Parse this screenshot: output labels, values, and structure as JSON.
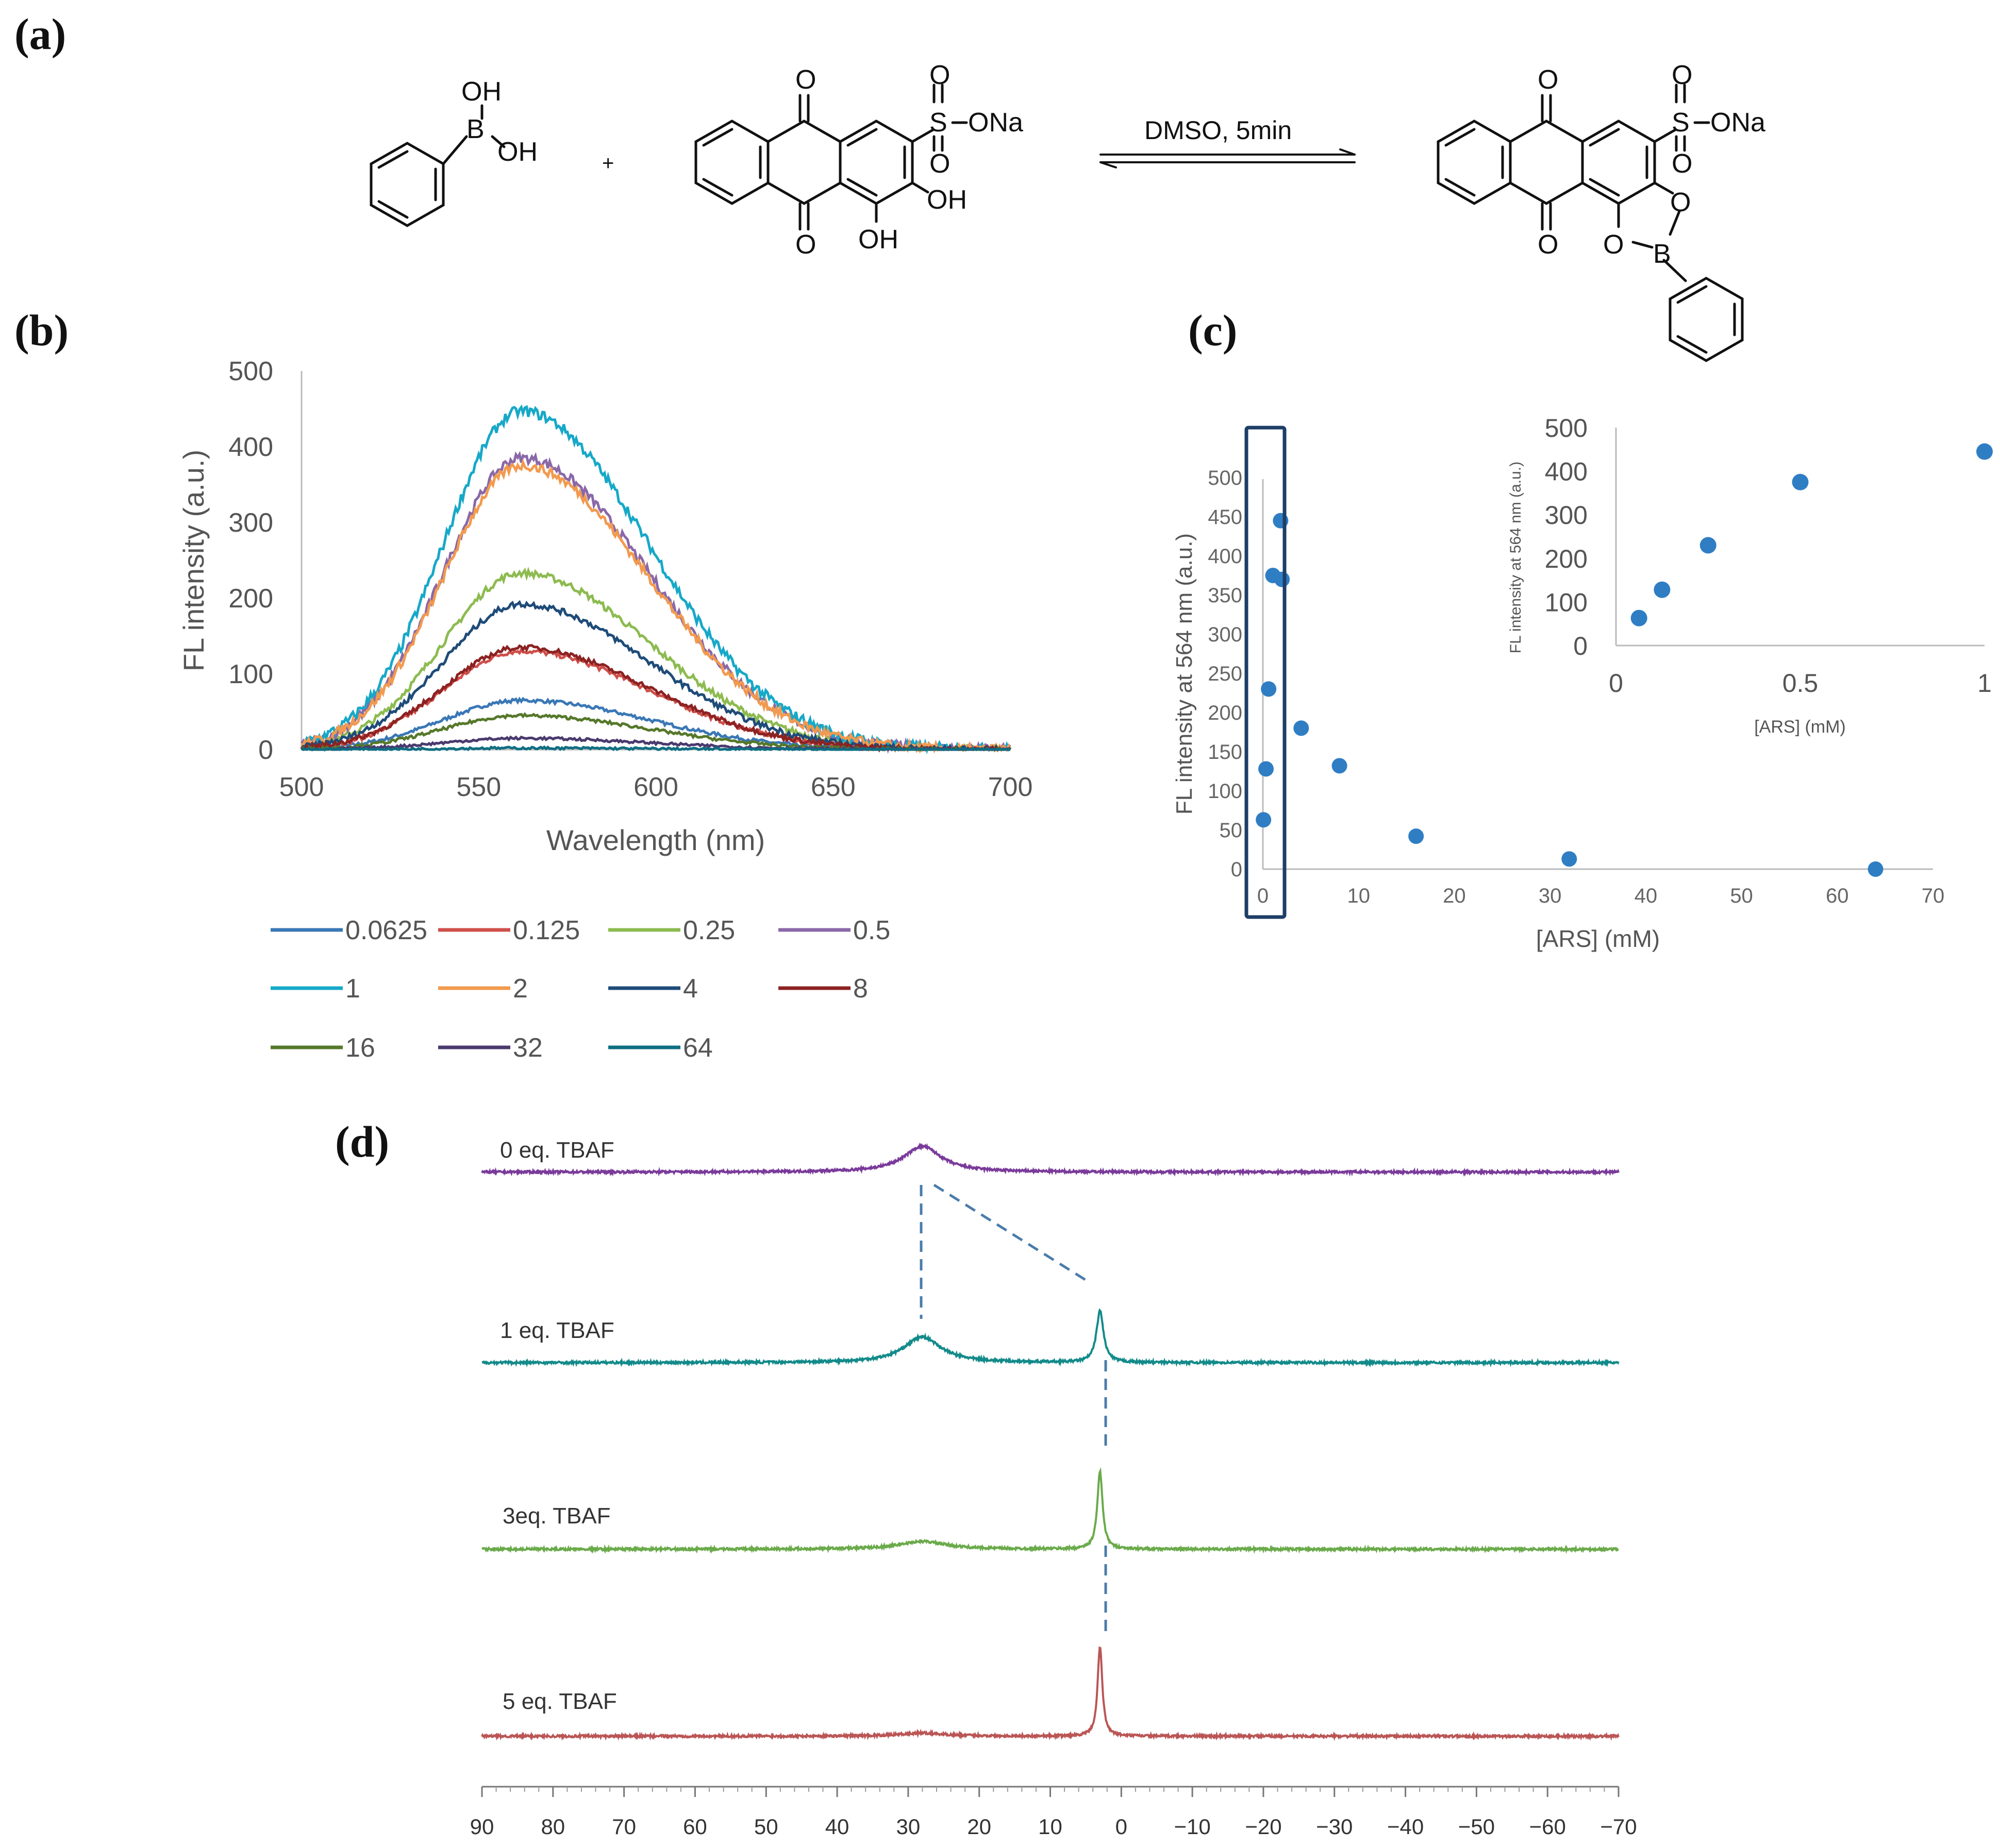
{
  "panels": {
    "a": "(a)",
    "b": "(b)",
    "c": "(c)",
    "d": "(d)"
  },
  "reaction": {
    "condition": "DMSO, 5min",
    "plus": "+",
    "reactant1": {
      "oh_top": "OH",
      "b": "B",
      "oh_right": "OH"
    },
    "reactant2": {
      "o_top": "O",
      "o_bottom": "O",
      "s": "S",
      "so_top": "O",
      "so_bottom": "O",
      "ona": "ONa",
      "oh1": "OH",
      "oh2": "OH"
    },
    "product": {
      "o_top": "O",
      "o_bottom": "O",
      "s": "S",
      "so_top": "O",
      "so_bottom": "O",
      "ona": "ONa",
      "ring_o1": "O",
      "ring_o2": "O",
      "b": "B"
    }
  },
  "chart_data": [
    {
      "id": "b",
      "type": "line",
      "xlabel": "Wavelength (nm)",
      "ylabel": "FL intensity (a.u.)",
      "xlim": [
        500,
        700
      ],
      "ylim": [
        0,
        500
      ],
      "xticks": [
        "500",
        "550",
        "600",
        "650",
        "700"
      ],
      "yticks": [
        "0",
        "100",
        "200",
        "300",
        "400",
        "500"
      ],
      "peak_nm": 562,
      "series": [
        {
          "name": "0.0625",
          "color": "#3a78b6",
          "peak": 65
        },
        {
          "name": "0.125",
          "color": "#cf4f4a",
          "peak": 130
        },
        {
          "name": "0.25",
          "color": "#8dbb50",
          "peak": 233
        },
        {
          "name": "0.5",
          "color": "#8a68a8",
          "peak": 385
        },
        {
          "name": "1",
          "color": "#17a8c8",
          "peak": 447
        },
        {
          "name": "2",
          "color": "#f29a4e",
          "peak": 375
        },
        {
          "name": "4",
          "color": "#1e4b78",
          "peak": 192
        },
        {
          "name": "8",
          "color": "#8c2222",
          "peak": 135
        },
        {
          "name": "16",
          "color": "#55782a",
          "peak": 45
        },
        {
          "name": "32",
          "color": "#4a3a6e",
          "peak": 15
        },
        {
          "name": "64",
          "color": "#0f6e82",
          "peak": 2
        }
      ]
    },
    {
      "id": "c",
      "type": "scatter",
      "xlabel": "[ARS] (mM)",
      "ylabel": "FL intensity at 564 nm (a.u.)",
      "xlim": [
        0,
        70
      ],
      "ylim": [
        0,
        500
      ],
      "xticks": [
        "0",
        "10",
        "20",
        "30",
        "40",
        "50",
        "60",
        "70"
      ],
      "yticks": [
        "0",
        "50",
        "100",
        "150",
        "200",
        "250",
        "300",
        "350",
        "400",
        "450",
        "500"
      ],
      "color": "#2f7ec4",
      "x": [
        0.0625,
        0.125,
        0.25,
        0.5,
        1,
        2,
        4,
        8,
        16,
        32,
        64
      ],
      "y": [
        63,
        128,
        230,
        375,
        445,
        370,
        180,
        132,
        42,
        13,
        0
      ],
      "inset": {
        "xlabel": "[ARS] (mM)",
        "ylabel": "FL intensity at 564 nm (a.u.)",
        "xlim": [
          0,
          1
        ],
        "ylim": [
          0,
          500
        ],
        "xticks": [
          "0",
          "0.5",
          "1"
        ],
        "yticks": [
          "0",
          "100",
          "200",
          "300",
          "400",
          "500"
        ],
        "x": [
          0.0625,
          0.125,
          0.25,
          0.5,
          1
        ],
        "y": [
          63,
          128,
          230,
          375,
          445
        ]
      }
    },
    {
      "id": "d",
      "type": "line",
      "xlabel": "",
      "xlim": [
        90,
        -70
      ],
      "xticks": [
        "90",
        "80",
        "70",
        "60",
        "50",
        "40",
        "30",
        "20",
        "10",
        "0",
        "−10",
        "−20",
        "−30",
        "−40",
        "−50",
        "−60",
        "−70"
      ],
      "series": [
        {
          "name": "0 eq. TBAF",
          "color": "#7a3a9a",
          "peaks": [
            {
              "ppm": 28,
              "height": 1.0,
              "width": 3.2
            }
          ]
        },
        {
          "name": "1 eq. TBAF",
          "color": "#138a8a",
          "peaks": [
            {
              "ppm": 28,
              "height": 1.0,
              "width": 3.2
            },
            {
              "ppm": 3,
              "height": 2.0,
              "width": 0.6
            }
          ]
        },
        {
          "name": "3eq. TBAF",
          "color": "#6aaa4a",
          "peaks": [
            {
              "ppm": 28,
              "height": 0.3,
              "width": 4.0
            },
            {
              "ppm": 3,
              "height": 3.0,
              "width": 0.45
            }
          ]
        },
        {
          "name": "5 eq. TBAF",
          "color": "#bb5555",
          "peaks": [
            {
              "ppm": 28,
              "height": 0.12,
              "width": 4.0
            },
            {
              "ppm": 3,
              "height": 3.5,
              "width": 0.4
            }
          ]
        }
      ]
    }
  ]
}
